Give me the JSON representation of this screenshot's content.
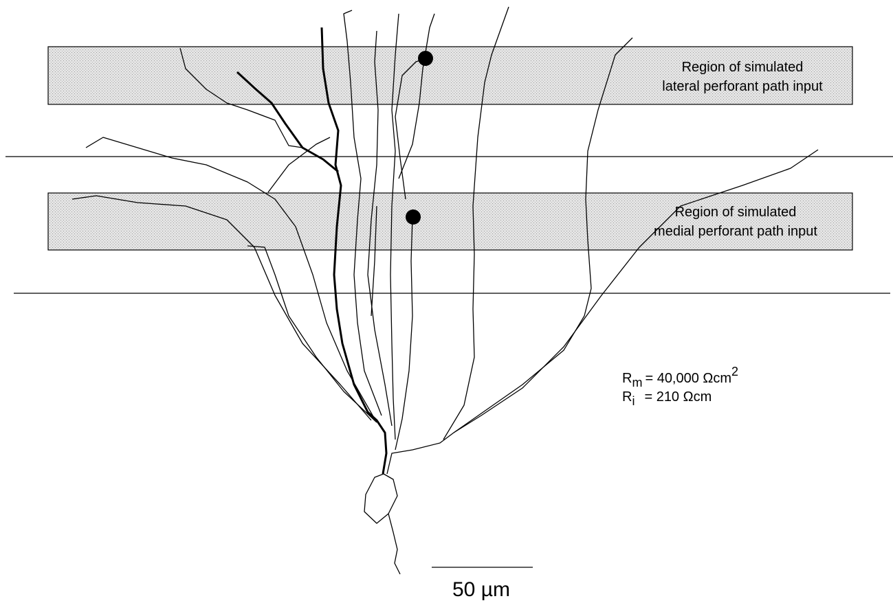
{
  "regions": [
    {
      "label_lines": [
        "Region of simulated",
        "lateral perforant path input"
      ]
    },
    {
      "label_lines": [
        "Region of simulated",
        "medial perforant path input"
      ]
    }
  ],
  "parameters": [
    {
      "symbol": "R",
      "subscript": "m",
      "value": "= 40,000 Ωcm",
      "superscript": "2"
    },
    {
      "symbol": "R",
      "subscript": "i",
      "value": "= 210 Ωcm"
    }
  ],
  "scale_bar": {
    "label": "50 µm"
  }
}
